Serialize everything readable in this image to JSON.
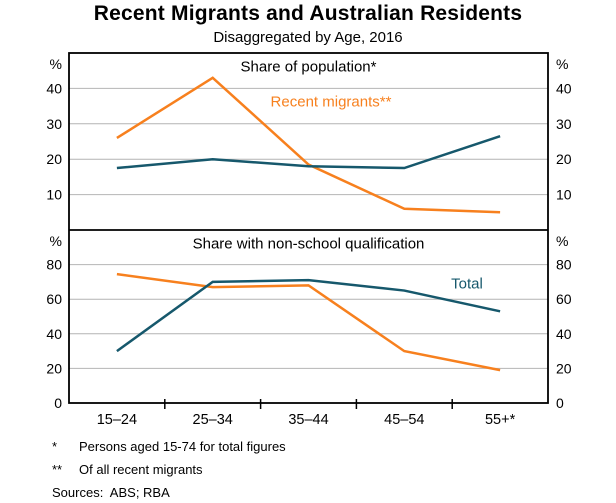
{
  "title": "Recent Migrants and Australian Residents",
  "subtitle": "Disaggregated by Age, 2016",
  "chart_data": {
    "type": "line",
    "categories": [
      "15–24",
      "25–34",
      "35–44",
      "45–54",
      "55+*"
    ],
    "unit": "%",
    "grid": true,
    "legend_position": "inline-labels",
    "panels": [
      {
        "title": "Share of population*",
        "ylim": [
          0,
          50
        ],
        "yticks": [
          10,
          20,
          30,
          40
        ],
        "series": [
          {
            "name": "Recent migrants**",
            "color": "#f7801e",
            "values": [
              26,
              43,
              18.5,
              6,
              5
            ]
          },
          {
            "name": "Total",
            "color": "#16586c",
            "values": [
              17.5,
              20,
              18,
              17.5,
              26.5
            ]
          }
        ]
      },
      {
        "title": "Share with non-school qualification",
        "ylim": [
          0,
          100
        ],
        "yticks": [
          0,
          20,
          40,
          60,
          80
        ],
        "series": [
          {
            "name": "Recent migrants**",
            "color": "#f7801e",
            "values": [
              74.5,
              67,
              68,
              30,
              19
            ]
          },
          {
            "name": "Total",
            "color": "#16586c",
            "values": [
              30,
              70,
              71,
              65,
              53
            ]
          }
        ]
      }
    ]
  },
  "footnotes": [
    {
      "marker": "*",
      "text": "Persons aged 15-74 for total figures"
    },
    {
      "marker": "**",
      "text": "Of all recent migrants"
    }
  ],
  "sources": "Sources:  ABS; RBA",
  "colors": {
    "recent_migrants": "#f7801e",
    "total": "#16586c",
    "gridline": "#b4b4b4",
    "axis": "#000000"
  }
}
